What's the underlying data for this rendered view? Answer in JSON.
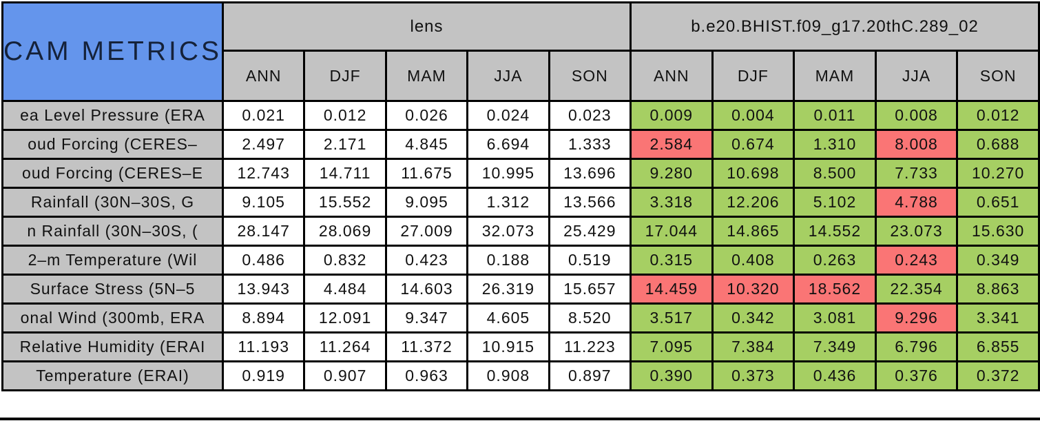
{
  "colors": {
    "title_background": "#6495EC",
    "header_background": "#C3C3C3",
    "pass_cell": "#A6CF63",
    "fail_cell": "#FA7575",
    "border": "#000000",
    "lens_cell": "#FFFFFF"
  },
  "chart_data": {
    "type": "table",
    "title": "CAM METRICS",
    "column_groups": [
      "lens",
      "b.e20.BHIST.f09_g17.20thC.289_02"
    ],
    "seasons": [
      "ANN",
      "DJF",
      "MAM",
      "JJA",
      "SON"
    ],
    "rows": [
      {
        "label": "ea Level Pressure (ERA",
        "lens": [
          "0.021",
          "0.012",
          "0.026",
          "0.024",
          "0.023"
        ],
        "case": [
          "0.009",
          "0.004",
          "0.011",
          "0.008",
          "0.012"
        ],
        "case_flags": [
          "green",
          "green",
          "green",
          "green",
          "green"
        ]
      },
      {
        "label": "oud Forcing (CERES–",
        "lens": [
          "2.497",
          "2.171",
          "4.845",
          "6.694",
          "1.333"
        ],
        "case": [
          "2.584",
          "0.674",
          "1.310",
          "8.008",
          "0.688"
        ],
        "case_flags": [
          "red",
          "green",
          "green",
          "red",
          "green"
        ]
      },
      {
        "label": "oud Forcing (CERES–E",
        "lens": [
          "12.743",
          "14.711",
          "11.675",
          "10.995",
          "13.696"
        ],
        "case": [
          "9.280",
          "10.698",
          "8.500",
          "7.733",
          "10.270"
        ],
        "case_flags": [
          "green",
          "green",
          "green",
          "green",
          "green"
        ]
      },
      {
        "label": "Rainfall (30N–30S, G",
        "lens": [
          "9.105",
          "15.552",
          "9.095",
          "1.312",
          "13.566"
        ],
        "case": [
          "3.318",
          "12.206",
          "5.102",
          "4.788",
          "0.651"
        ],
        "case_flags": [
          "green",
          "green",
          "green",
          "red",
          "green"
        ]
      },
      {
        "label": "n Rainfall (30N–30S, (",
        "lens": [
          "28.147",
          "28.069",
          "27.009",
          "32.073",
          "25.429"
        ],
        "case": [
          "17.044",
          "14.865",
          "14.552",
          "23.073",
          "15.630"
        ],
        "case_flags": [
          "green",
          "green",
          "green",
          "green",
          "green"
        ]
      },
      {
        "label": "2–m Temperature (Wil",
        "lens": [
          "0.486",
          "0.832",
          "0.423",
          "0.188",
          "0.519"
        ],
        "case": [
          "0.315",
          "0.408",
          "0.263",
          "0.243",
          "0.349"
        ],
        "case_flags": [
          "green",
          "green",
          "green",
          "red",
          "green"
        ]
      },
      {
        "label": "Surface Stress (5N–5",
        "lens": [
          "13.943",
          "4.484",
          "14.603",
          "26.319",
          "15.657"
        ],
        "case": [
          "14.459",
          "10.320",
          "18.562",
          "22.354",
          "8.863"
        ],
        "case_flags": [
          "red",
          "red",
          "red",
          "green",
          "green"
        ]
      },
      {
        "label": "onal Wind (300mb, ERA",
        "lens": [
          "8.894",
          "12.091",
          "9.347",
          "4.605",
          "8.520"
        ],
        "case": [
          "3.517",
          "0.342",
          "3.081",
          "9.296",
          "3.341"
        ],
        "case_flags": [
          "green",
          "green",
          "green",
          "red",
          "green"
        ]
      },
      {
        "label": "Relative Humidity (ERAI",
        "lens": [
          "11.193",
          "11.264",
          "11.372",
          "10.915",
          "11.223"
        ],
        "case": [
          "7.095",
          "7.384",
          "7.349",
          "6.796",
          "6.855"
        ],
        "case_flags": [
          "green",
          "green",
          "green",
          "green",
          "green"
        ]
      },
      {
        "label": "Temperature (ERAI)",
        "lens": [
          "0.919",
          "0.907",
          "0.963",
          "0.908",
          "0.897"
        ],
        "case": [
          "0.390",
          "0.373",
          "0.436",
          "0.376",
          "0.372"
        ],
        "case_flags": [
          "green",
          "green",
          "green",
          "green",
          "green"
        ]
      }
    ]
  }
}
